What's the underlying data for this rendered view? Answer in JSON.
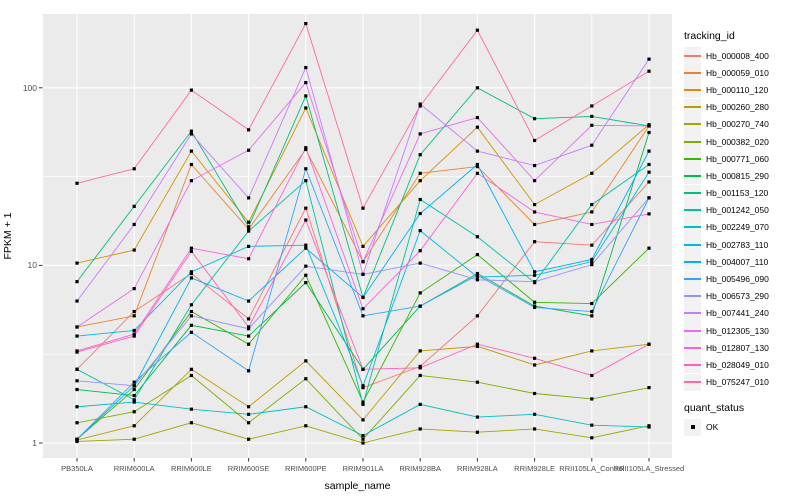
{
  "chart_data": {
    "type": "line",
    "title": "",
    "xlabel": "sample_name",
    "ylabel": "FPKM + 1",
    "y_scale": "log10",
    "y_ticks": [
      1,
      10,
      100
    ],
    "y_minor_ticks": [
      3.1623,
      31.623
    ],
    "ylim": [
      0.93,
      280
    ],
    "grid": true,
    "legend_position": "right",
    "x_categories": [
      "PB350LA",
      "RRIM600LA",
      "RRIM600LE",
      "RRIM600SE",
      "RRIM600PE",
      "RRIM901LA",
      "RRIM928BA",
      "RRIM928LA",
      "RRIM928LE",
      "RRII105LA_Control",
      "RRII105LA_Stressed"
    ],
    "marker": {
      "shape": "square",
      "color": "#000000",
      "label": "OK",
      "group": "quant_status"
    },
    "series": [
      {
        "name": "Hb_000008_400",
        "color": "#F8766D",
        "values": [
          2.6,
          5.5,
          9.0,
          5.0,
          21,
          2.05,
          2.7,
          5.2,
          13.6,
          13,
          29.5
        ]
      },
      {
        "name": "Hb_000059_010",
        "color": "#EA8331",
        "values": [
          4.5,
          5.2,
          37,
          16,
          45,
          10.5,
          33,
          36,
          17,
          20,
          61
        ]
      },
      {
        "name": "Hb_000110_120",
        "color": "#D89000",
        "values": [
          10.3,
          12.2,
          44,
          17.5,
          77,
          12.8,
          30,
          60,
          22,
          33,
          62
        ]
      },
      {
        "name": "Hb_000260_280",
        "color": "#C09B00",
        "values": [
          1.04,
          1.25,
          2.6,
          1.6,
          2.9,
          1.35,
          3.3,
          3.5,
          2.75,
          3.3,
          3.6
        ]
      },
      {
        "name": "Hb_000270_740",
        "color": "#A3A500",
        "values": [
          1.02,
          1.05,
          1.3,
          1.05,
          1.25,
          1.0,
          1.2,
          1.15,
          1.2,
          1.07,
          1.25
        ]
      },
      {
        "name": "Hb_000382_020",
        "color": "#7CAE00",
        "values": [
          1.3,
          1.5,
          2.4,
          1.3,
          2.3,
          1.05,
          2.4,
          2.2,
          1.9,
          1.77,
          2.05
        ]
      },
      {
        "name": "Hb_000771_060",
        "color": "#39B600",
        "values": [
          1.05,
          2.0,
          5.5,
          3.6,
          8.8,
          1.7,
          7.0,
          11.5,
          6.2,
          6.1,
          12.5
        ]
      },
      {
        "name": "Hb_000815_290",
        "color": "#00BB4E",
        "values": [
          2.0,
          1.85,
          4.6,
          4.0,
          8.0,
          2.6,
          5.9,
          9.0,
          5.9,
          5.2,
          56
        ]
      },
      {
        "name": "Hb_001153_120",
        "color": "#00BF7D",
        "values": [
          8.1,
          21.5,
          57,
          16.5,
          90,
          6.6,
          42,
          100,
          67,
          69,
          61
        ]
      },
      {
        "name": "Hb_001242_050",
        "color": "#00C1A3",
        "values": [
          2.6,
          1.75,
          6.0,
          15.6,
          30,
          1.65,
          23.5,
          14.5,
          8.0,
          22,
          37
        ]
      },
      {
        "name": "Hb_002249_070",
        "color": "#00BFC4",
        "values": [
          1.6,
          1.7,
          1.55,
          1.45,
          1.6,
          1.1,
          1.65,
          1.4,
          1.45,
          1.26,
          1.23
        ]
      },
      {
        "name": "Hb_002783_110",
        "color": "#00BAE0",
        "values": [
          4.0,
          4.3,
          9.2,
          12.8,
          13,
          2.1,
          15.7,
          8.6,
          8.8,
          10.5,
          33.5
        ]
      },
      {
        "name": "Hb_004007_110",
        "color": "#00B0F6",
        "values": [
          1.05,
          2.1,
          8.5,
          6.3,
          12.5,
          6.6,
          19.6,
          37,
          9.2,
          10.8,
          44
        ]
      },
      {
        "name": "Hb_005496_090",
        "color": "#35A2FF",
        "values": [
          1.05,
          2.2,
          4.2,
          2.55,
          35,
          5.2,
          5.9,
          8.8,
          5.8,
          5.5,
          24
        ]
      },
      {
        "name": "Hb_006573_290",
        "color": "#9590FF",
        "values": [
          2.24,
          2.1,
          5.2,
          4.4,
          9.9,
          8.9,
          10.3,
          8.3,
          8.1,
          10.1,
          24
        ]
      },
      {
        "name": "Hb_007441_240",
        "color": "#C77CFF",
        "values": [
          6.3,
          17,
          55,
          24,
          130,
          8.9,
          81,
          44,
          36.5,
          47.5,
          145
        ]
      },
      {
        "name": "Hb_012305_130",
        "color": "#E76BF3",
        "values": [
          4.5,
          7.4,
          30,
          44.5,
          107,
          10.5,
          55,
          68,
          30,
          61.5,
          61
        ]
      },
      {
        "name": "Hb_012807_130",
        "color": "#FA62DB",
        "values": [
          3.3,
          4.1,
          12.5,
          10.9,
          46,
          5.7,
          12.1,
          33,
          20,
          17,
          19.5
        ]
      },
      {
        "name": "Hb_028049_010",
        "color": "#FF62BC",
        "values": [
          3.25,
          4.0,
          12,
          4.5,
          18,
          2.6,
          2.65,
          3.6,
          3.0,
          2.4,
          3.6
        ]
      },
      {
        "name": "Hb_075247_010",
        "color": "#FF6A98",
        "values": [
          29,
          35,
          97,
          58,
          230,
          21,
          79,
          211,
          50.5,
          79,
          124
        ]
      }
    ]
  },
  "legend": {
    "tracking_title": "tracking_id",
    "quant_title": "quant_status",
    "quant_items": [
      {
        "label": "OK"
      }
    ]
  },
  "colors": {
    "figure_bg": "#FFFFFF",
    "panel_bg": "#EBEBEB",
    "grid": "#FFFFFF",
    "marker": "#000000",
    "tick_text": "#4D4D4D",
    "title_text": "#000000",
    "legend_key_bg": "#F2F2F2",
    "tick_mark": "#333333"
  }
}
